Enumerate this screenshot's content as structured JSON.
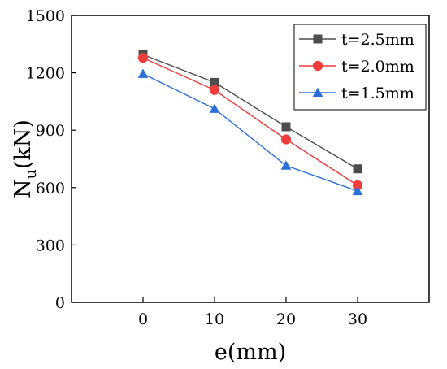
{
  "chart_data": {
    "type": "line",
    "title": "",
    "xlabel": "e(mm)",
    "ylabel": {
      "main": "N",
      "sub": "u",
      "rest": "(kN)"
    },
    "x": [
      0,
      10,
      20,
      30
    ],
    "xlim": [
      -10,
      40
    ],
    "ylim": [
      0,
      1500
    ],
    "xticks": [
      0,
      10,
      20,
      30
    ],
    "yticks": [
      0,
      300,
      600,
      900,
      1200,
      1500
    ],
    "grid": false,
    "legend_position": "top-right",
    "series": [
      {
        "name": "t=2.5mm",
        "values": [
          1295,
          1150,
          918,
          698
        ],
        "color": "#4d4d4d",
        "marker": "square"
      },
      {
        "name": "t=2.0mm",
        "values": [
          1278,
          1110,
          852,
          612
        ],
        "color": "#f03c3c",
        "marker": "circle"
      },
      {
        "name": "t=1.5mm",
        "values": [
          1195,
          1012,
          715,
          582
        ],
        "color": "#2a6fdb",
        "marker": "triangle"
      }
    ]
  }
}
